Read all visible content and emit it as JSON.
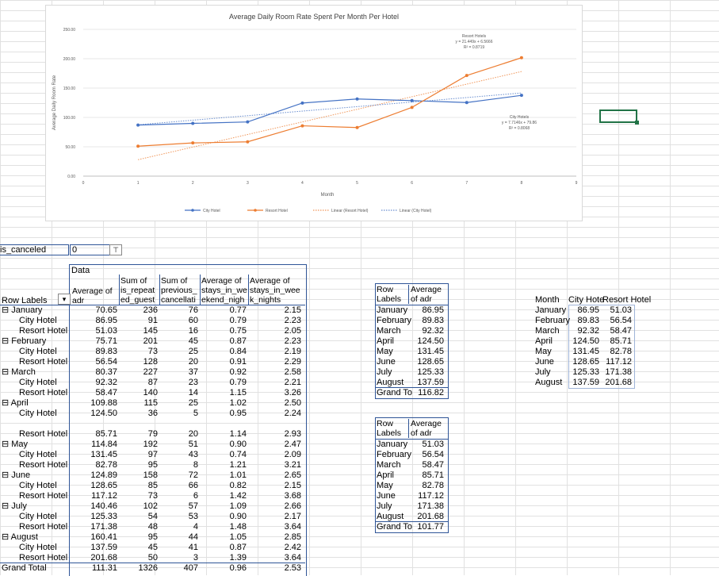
{
  "chart_data": {
    "type": "line",
    "title": "Average Daily Room Rate Spent Per Month Per Hotel",
    "xlabel": "Month",
    "ylabel": "Average Daily Room Rate",
    "xlim": [
      0,
      9
    ],
    "ylim": [
      0,
      250
    ],
    "xticks": [
      "0",
      "1",
      "2",
      "3",
      "4",
      "5",
      "6",
      "7",
      "8",
      "9"
    ],
    "yticks": [
      "0.00",
      "50.00",
      "100.00",
      "150.00",
      "200.00",
      "250.00"
    ],
    "x": [
      1,
      2,
      3,
      4,
      5,
      6,
      7,
      8
    ],
    "series": [
      {
        "name": "City Hotel",
        "color": "#4472c4",
        "values": [
          86.95,
          89.83,
          92.32,
          124.5,
          131.45,
          128.65,
          125.33,
          137.59
        ]
      },
      {
        "name": "Resort Hotel",
        "color": "#ed7d31",
        "values": [
          51.03,
          56.54,
          58.47,
          85.71,
          82.78,
          117.12,
          171.38,
          201.68
        ]
      }
    ],
    "trendlines": [
      {
        "name": "Linear (Resort Hotel)",
        "color": "#ed7d31",
        "slope": 21.449,
        "intercept": 6.5666
      },
      {
        "name": "Linear (City Hotel)",
        "color": "#4472c4",
        "slope": 7.7146,
        "intercept": 79.86
      }
    ],
    "annotations": [
      {
        "lines": [
          "Resort Hotels",
          "y = 21.449x + 6.5666",
          "R² = 0.8719"
        ]
      },
      {
        "lines": [
          "City Hotels",
          "y = 7.7146x + 79.86",
          "R² = 0.8068"
        ]
      }
    ],
    "legend": [
      "City Hotel",
      "Resort Hotel",
      "Linear (Resort Hotel)",
      "Linear (City Hotel)"
    ],
    "legend_position": "bottom"
  },
  "filter": {
    "field": "is_canceled",
    "value": "0",
    "icon": "filter-icon"
  },
  "pivot": {
    "data_label": "Data",
    "row_labels": "Row Labels",
    "col_headers": [
      [
        "Average of",
        "adr"
      ],
      [
        "Sum of",
        "is_repeat",
        "ed_guest"
      ],
      [
        "Sum of",
        "previous_",
        "cancellati"
      ],
      [
        "Average of",
        "stays_in_we",
        "ekend_nigh"
      ],
      [
        "Average of",
        "stays_in_wee",
        "k_nights"
      ]
    ],
    "rows": [
      {
        "label": "January",
        "group": true,
        "v": [
          "70.65",
          "236",
          "76",
          "0.77",
          "2.15"
        ]
      },
      {
        "label": "City Hotel",
        "v": [
          "86.95",
          "91",
          "60",
          "0.79",
          "2.23"
        ]
      },
      {
        "label": "Resort Hotel",
        "v": [
          "51.03",
          "145",
          "16",
          "0.75",
          "2.05"
        ]
      },
      {
        "label": "February",
        "group": true,
        "v": [
          "75.71",
          "201",
          "45",
          "0.87",
          "2.23"
        ]
      },
      {
        "label": "City Hotel",
        "v": [
          "89.83",
          "73",
          "25",
          "0.84",
          "2.19"
        ]
      },
      {
        "label": "Resort Hotel",
        "v": [
          "56.54",
          "128",
          "20",
          "0.91",
          "2.29"
        ]
      },
      {
        "label": "March",
        "group": true,
        "v": [
          "80.37",
          "227",
          "37",
          "0.92",
          "2.58"
        ]
      },
      {
        "label": "City Hotel",
        "v": [
          "92.32",
          "87",
          "23",
          "0.79",
          "2.21"
        ]
      },
      {
        "label": "Resort Hotel",
        "v": [
          "58.47",
          "140",
          "14",
          "1.15",
          "3.26"
        ]
      },
      {
        "label": "April",
        "group": true,
        "v": [
          "109.88",
          "115",
          "25",
          "1.02",
          "2.50"
        ]
      },
      {
        "label": "City Hotel",
        "v": [
          "124.50",
          "36",
          "5",
          "0.95",
          "2.24"
        ]
      },
      {
        "label": "Resort Hotel",
        "v": [
          "85.71",
          "79",
          "20",
          "1.14",
          "2.93"
        ]
      },
      {
        "label": "May",
        "group": true,
        "v": [
          "114.84",
          "192",
          "51",
          "0.90",
          "2.47"
        ]
      },
      {
        "label": "City Hotel",
        "v": [
          "131.45",
          "97",
          "43",
          "0.74",
          "2.09"
        ]
      },
      {
        "label": "Resort Hotel",
        "v": [
          "82.78",
          "95",
          "8",
          "1.21",
          "3.21"
        ]
      },
      {
        "label": "June",
        "group": true,
        "v": [
          "124.89",
          "158",
          "72",
          "1.01",
          "2.65"
        ]
      },
      {
        "label": "City Hotel",
        "v": [
          "128.65",
          "85",
          "66",
          "0.82",
          "2.15"
        ]
      },
      {
        "label": "Resort Hotel",
        "v": [
          "117.12",
          "73",
          "6",
          "1.42",
          "3.68"
        ]
      },
      {
        "label": "July",
        "group": true,
        "v": [
          "140.46",
          "102",
          "57",
          "1.09",
          "2.66"
        ]
      },
      {
        "label": "City Hotel",
        "v": [
          "125.33",
          "54",
          "53",
          "0.90",
          "2.17"
        ]
      },
      {
        "label": "Resort Hotel",
        "v": [
          "171.38",
          "48",
          "4",
          "1.48",
          "3.64"
        ]
      },
      {
        "label": "August",
        "group": true,
        "v": [
          "160.41",
          "95",
          "44",
          "1.05",
          "2.85"
        ]
      },
      {
        "label": "City Hotel",
        "v": [
          "137.59",
          "45",
          "41",
          "0.87",
          "2.42"
        ]
      },
      {
        "label": "Resort Hotel",
        "v": [
          "201.68",
          "50",
          "3",
          "1.39",
          "3.64"
        ]
      },
      {
        "label": "Grand Total",
        "v": [
          "111.31",
          "1326",
          "407",
          "0.96",
          "2.53"
        ]
      }
    ]
  },
  "city_pivot": {
    "header": [
      "Row",
      "Labels"
    ],
    "value_header": [
      "Average",
      "of adr"
    ],
    "rows": [
      [
        "January",
        "86.95"
      ],
      [
        "February",
        "89.83"
      ],
      [
        "March",
        "92.32"
      ],
      [
        "April",
        "124.50"
      ],
      [
        "May",
        "131.45"
      ],
      [
        "June",
        "128.65"
      ],
      [
        "July",
        "125.33"
      ],
      [
        "August",
        "137.59"
      ]
    ],
    "total": [
      "Grand To",
      "116.82"
    ]
  },
  "resort_pivot": {
    "header": [
      "Row",
      "Labels"
    ],
    "value_header": [
      "Average",
      "of adr"
    ],
    "rows": [
      [
        "January",
        "51.03"
      ],
      [
        "February",
        "56.54"
      ],
      [
        "March",
        "58.47"
      ],
      [
        "April",
        "85.71"
      ],
      [
        "May",
        "82.78"
      ],
      [
        "June",
        "117.12"
      ],
      [
        "July",
        "171.38"
      ],
      [
        "August",
        "201.68"
      ]
    ],
    "total": [
      "Grand To",
      "101.77"
    ]
  },
  "summary_table": {
    "headers": [
      "Month",
      "City Hote",
      "Resort Hotel"
    ],
    "rows": [
      [
        "January",
        "86.95",
        "51.03"
      ],
      [
        "February",
        "89.83",
        "56.54"
      ],
      [
        "March",
        "92.32",
        "58.47"
      ],
      [
        "April",
        "124.50",
        "85.71"
      ],
      [
        "May",
        "131.45",
        "82.78"
      ],
      [
        "June",
        "128.65",
        "117.12"
      ],
      [
        "July",
        "125.33",
        "171.38"
      ],
      [
        "August",
        "137.59",
        "201.68"
      ]
    ]
  }
}
